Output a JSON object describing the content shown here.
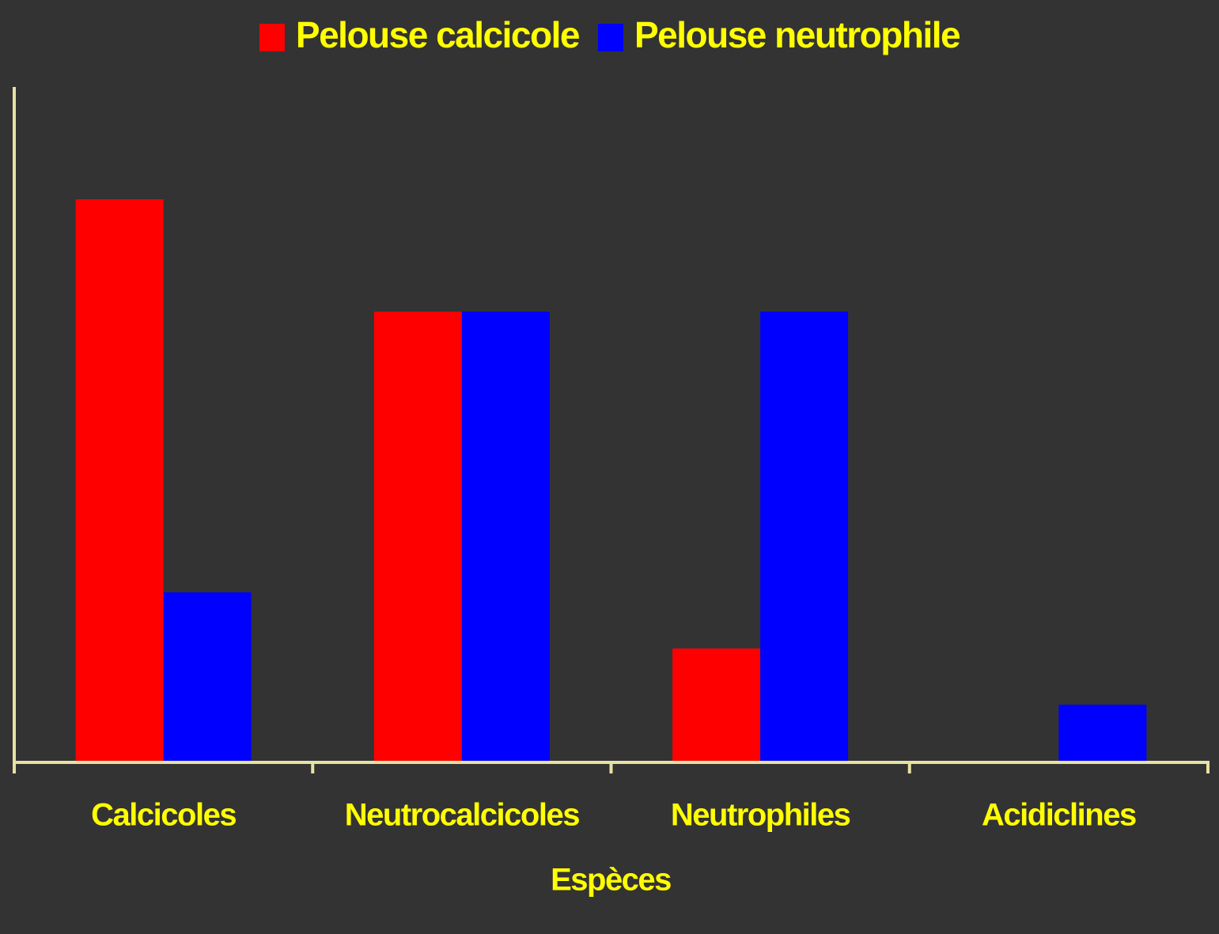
{
  "chart_data": {
    "type": "bar",
    "x_label": "Espèces",
    "categories": [
      "Calcicoles",
      "Neutrocalcicoles",
      "Neutrophiles",
      "Acidiclines"
    ],
    "series": [
      {
        "name": "Pelouse calcicole",
        "color": "#ff0000",
        "values": [
          10,
          8,
          2,
          0
        ]
      },
      {
        "name": "Pelouse neutrophile",
        "color": "#0000ff",
        "values": [
          3,
          8,
          8,
          1
        ]
      }
    ],
    "ylim": [
      0,
      12
    ],
    "legend": "top"
  }
}
